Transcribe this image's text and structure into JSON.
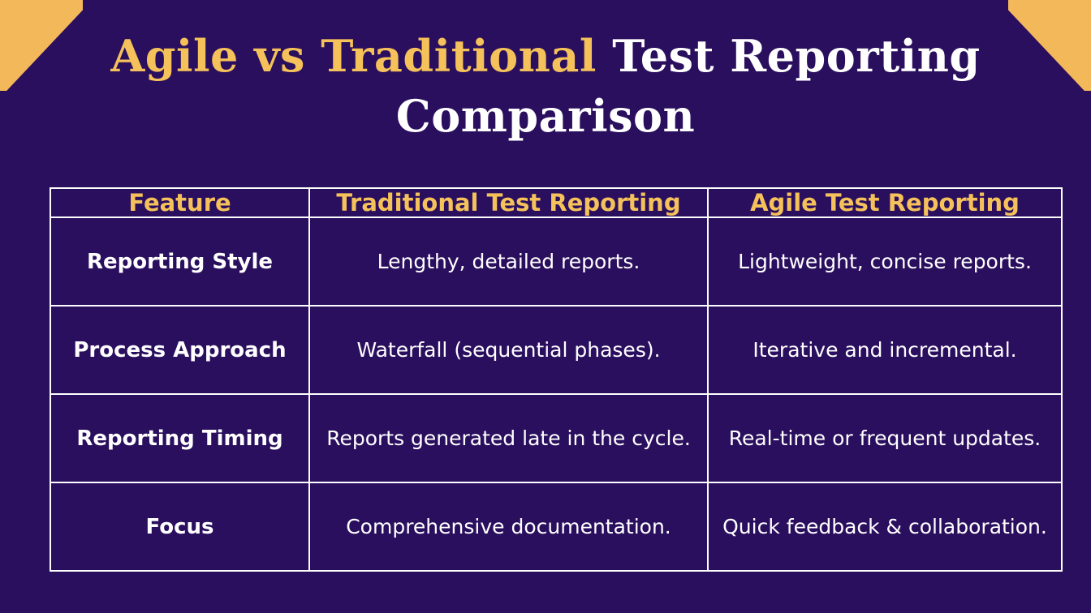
{
  "title": {
    "accent": "Agile vs Traditional",
    "rest": "Test Reporting",
    "line2": "Comparison"
  },
  "table": {
    "headers": [
      "Feature",
      "Traditional Test Reporting",
      "Agile Test Reporting"
    ],
    "rows": [
      [
        "Reporting Style",
        "Lengthy, detailed reports.",
        "Lightweight, concise reports."
      ],
      [
        "Process Approach",
        "Waterfall (sequential phases).",
        "Iterative and incremental."
      ],
      [
        "Reporting Timing",
        "Reports generated late in the cycle.",
        "Real-time or frequent updates."
      ],
      [
        "Focus",
        "Comprehensive documentation.",
        "Quick feedback & collaboration."
      ]
    ]
  },
  "colors": {
    "background": "#2a0f5e",
    "accent": "#f5c15a",
    "corner": "#f2b85a",
    "text": "#ffffff"
  }
}
